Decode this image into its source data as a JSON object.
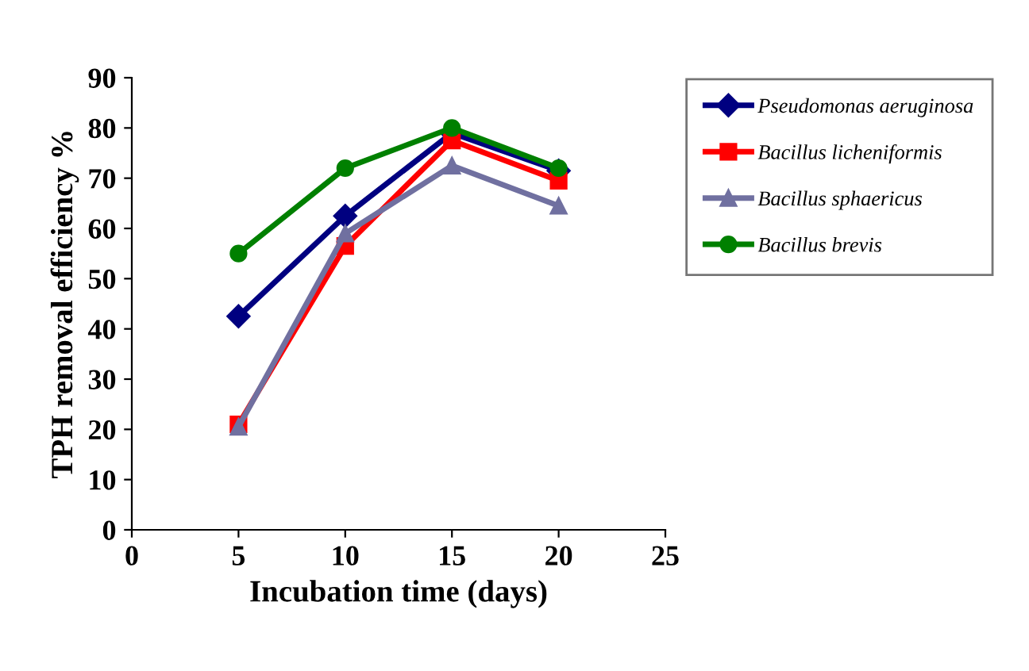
{
  "chart_data": {
    "type": "line",
    "xlabel": "Incubation time (days)",
    "ylabel": "TPH removal efficiency %",
    "x": [
      5,
      10,
      15,
      20
    ],
    "series": [
      {
        "name": "Pseudomonas aeruginosa",
        "color": "#000080",
        "marker": "diamond",
        "values": [
          42.5,
          62.5,
          79,
          71.5
        ]
      },
      {
        "name": "Bacillus licheniformis",
        "color": "#ff0000",
        "marker": "square",
        "values": [
          21,
          56.5,
          77.5,
          69.5
        ]
      },
      {
        "name": "Bacillus sphaericus",
        "color": "#7070a0",
        "marker": "triangle",
        "values": [
          20.5,
          59,
          72.5,
          64.5
        ]
      },
      {
        "name": "Bacillus brevis",
        "color": "#008000",
        "marker": "circle",
        "values": [
          55,
          72,
          80,
          72
        ]
      }
    ],
    "xlim": [
      0,
      25
    ],
    "xticks": [
      0,
      5,
      10,
      15,
      20,
      25
    ],
    "ylim": [
      0,
      90
    ],
    "yticks": [
      0,
      10,
      20,
      30,
      40,
      50,
      60,
      70,
      80,
      90
    ],
    "grid": false,
    "legend": "right",
    "line_style": "solid"
  }
}
